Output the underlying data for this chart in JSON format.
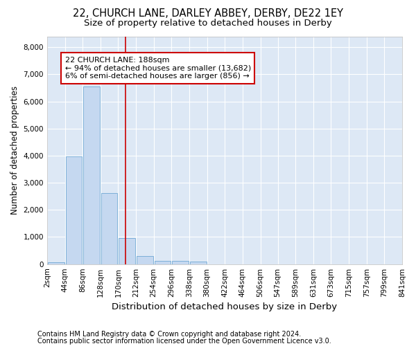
{
  "title1": "22, CHURCH LANE, DARLEY ABBEY, DERBY, DE22 1EY",
  "title2": "Size of property relative to detached houses in Derby",
  "xlabel": "Distribution of detached houses by size in Derby",
  "ylabel": "Number of detached properties",
  "footnote1": "Contains HM Land Registry data © Crown copyright and database right 2024.",
  "footnote2": "Contains public sector information licensed under the Open Government Licence v3.0.",
  "bin_edges": [
    2,
    44,
    86,
    128,
    170,
    212,
    254,
    296,
    338,
    380,
    422,
    464,
    506,
    547,
    589,
    631,
    673,
    715,
    757,
    799,
    841
  ],
  "bar_values": [
    70,
    3980,
    6560,
    2620,
    960,
    310,
    130,
    110,
    90,
    0,
    0,
    0,
    0,
    0,
    0,
    0,
    0,
    0,
    0,
    0
  ],
  "bar_color": "#c5d8f0",
  "bar_edgecolor": "#6fa8d4",
  "property_size": 188,
  "vline_color": "#cc0000",
  "annotation_line1": "22 CHURCH LANE: 188sqm",
  "annotation_line2": "← 94% of detached houses are smaller (13,682)",
  "annotation_line3": "6% of semi-detached houses are larger (856) →",
  "annotation_box_color": "#ffffff",
  "annotation_box_edgecolor": "#cc0000",
  "ylim": [
    0,
    8400
  ],
  "yticks": [
    0,
    1000,
    2000,
    3000,
    4000,
    5000,
    6000,
    7000,
    8000
  ],
  "background_color": "#dde8f5",
  "grid_color": "#ffffff",
  "figure_bg": "#ffffff",
  "title1_fontsize": 10.5,
  "title2_fontsize": 9.5,
  "xlabel_fontsize": 9.5,
  "ylabel_fontsize": 8.5,
  "tick_fontsize": 7.5,
  "annotation_fontsize": 8,
  "footnote_fontsize": 7
}
